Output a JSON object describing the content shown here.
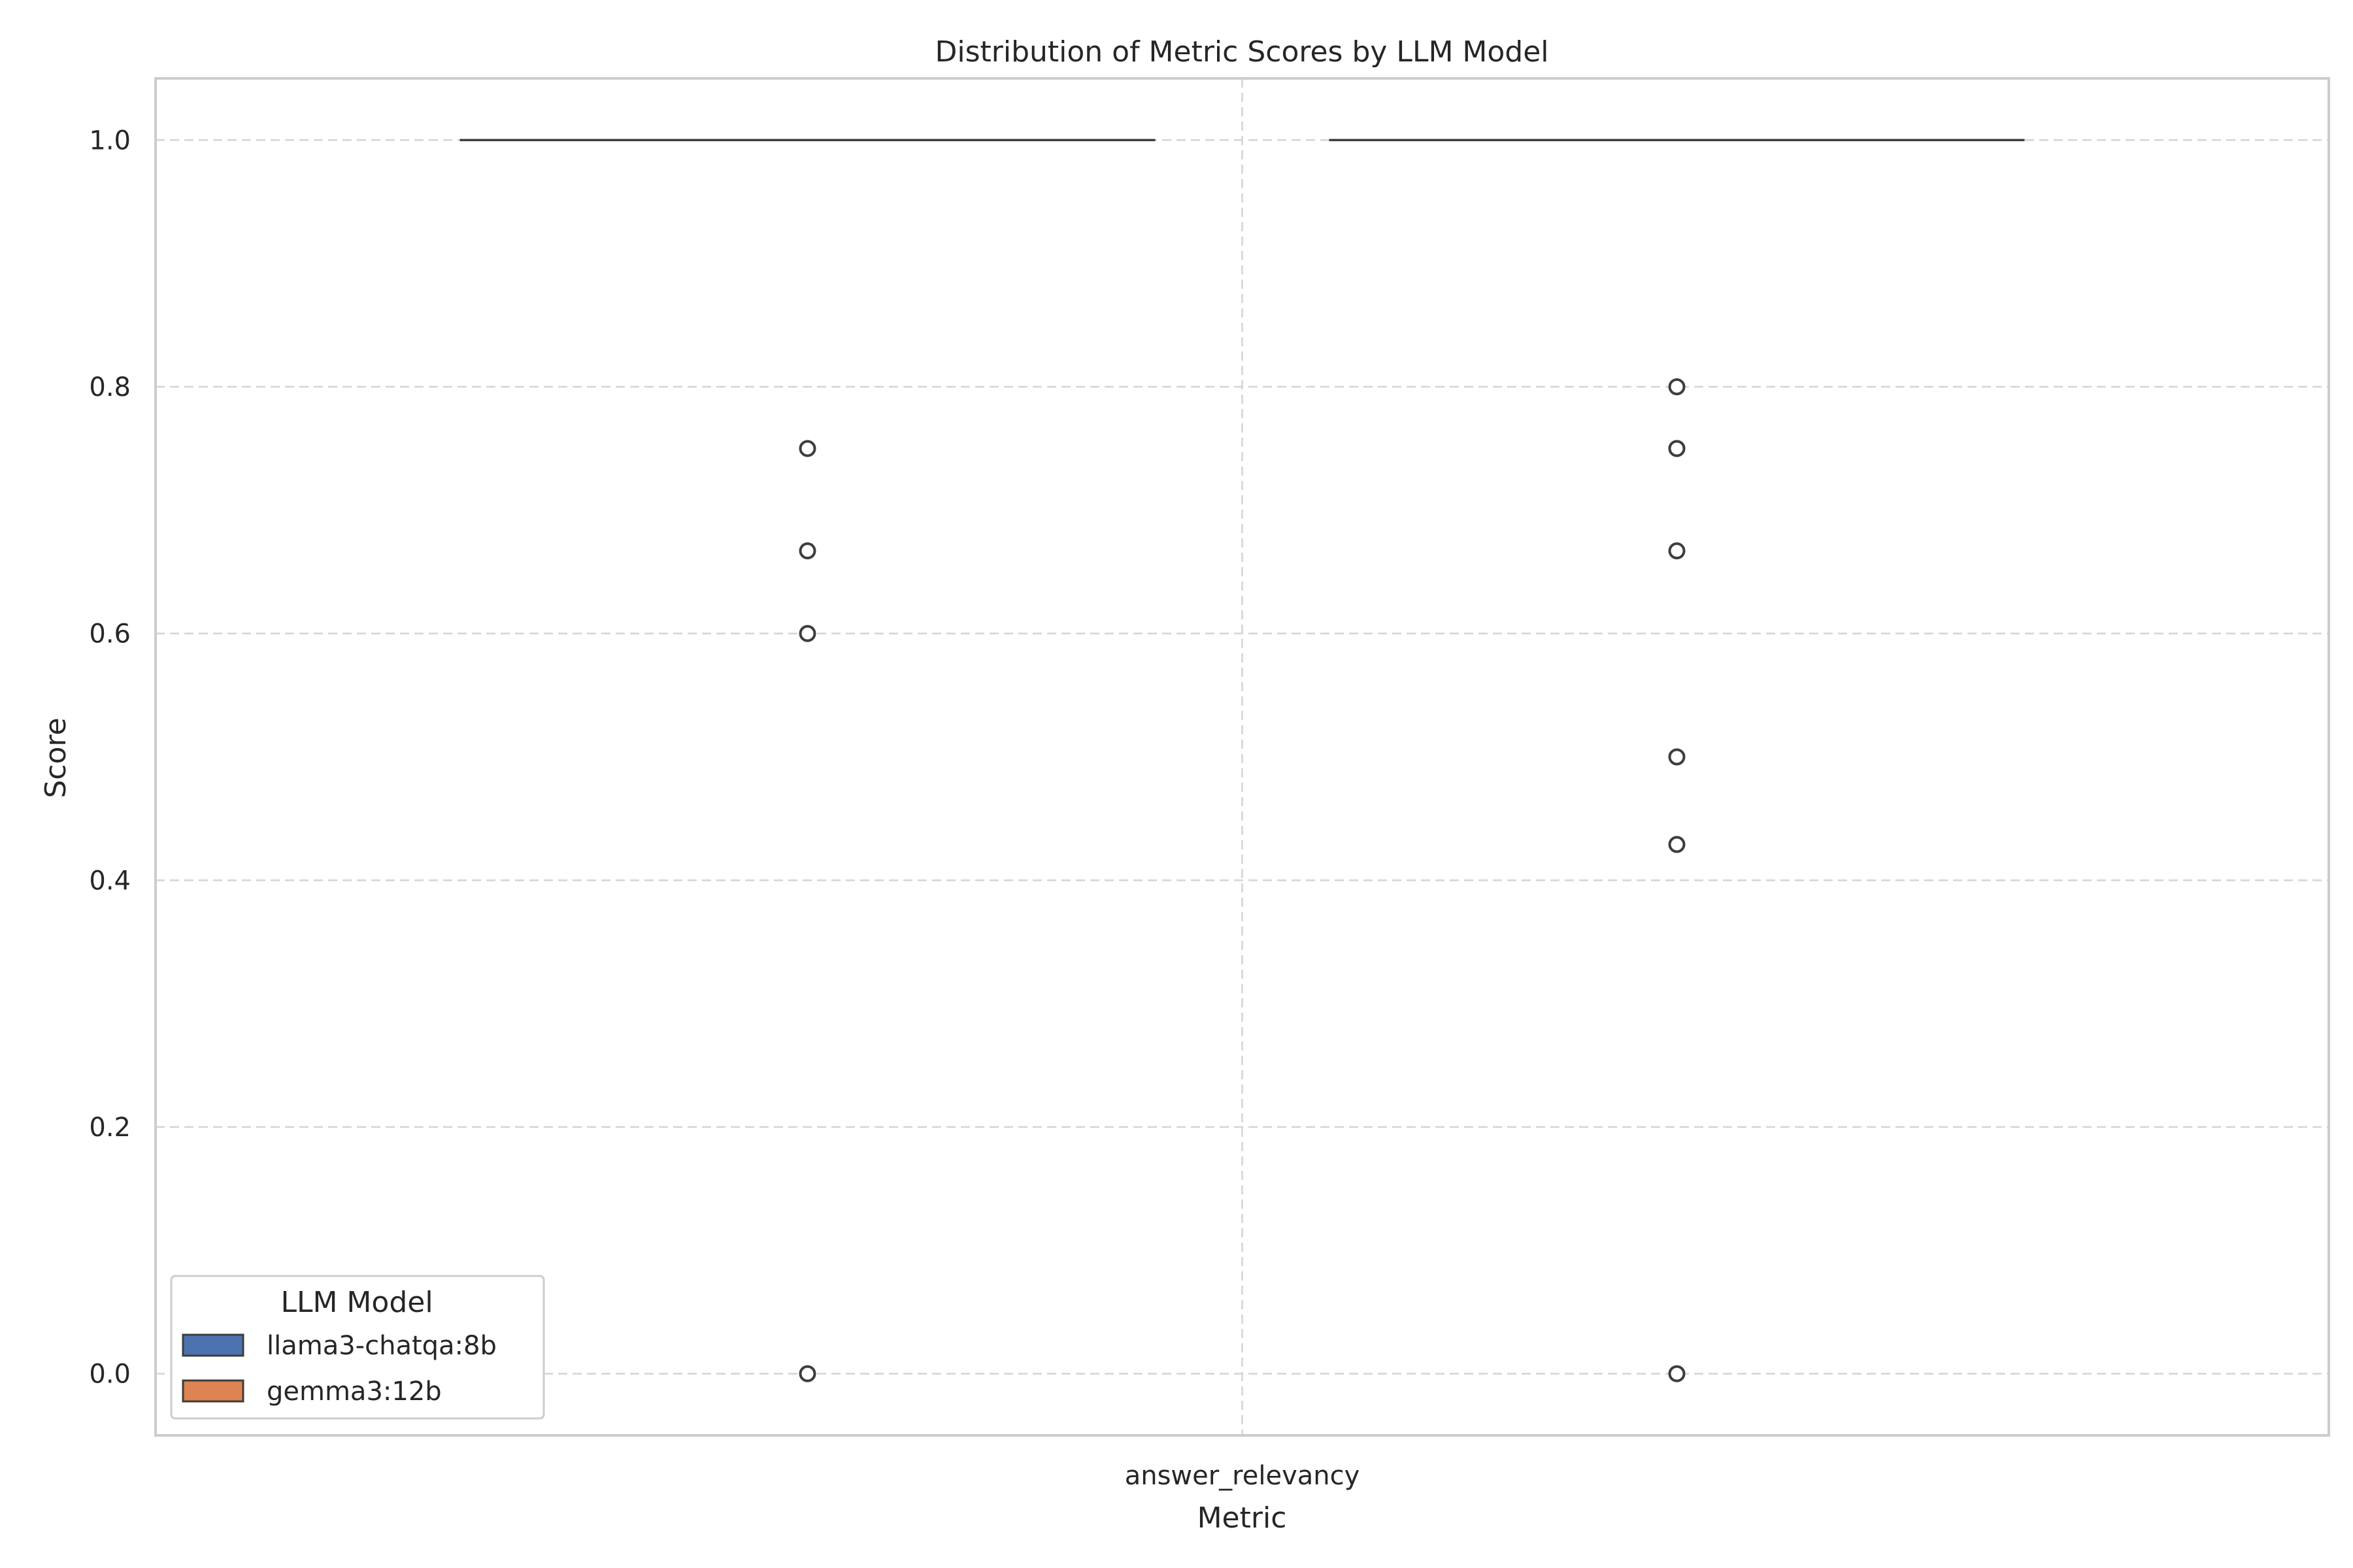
{
  "chart_data": {
    "type": "box",
    "title": "Distribution of Metric Scores by LLM Model",
    "xlabel": "Metric",
    "ylabel": "Score",
    "categories": [
      "answer_relevancy"
    ],
    "ylim": [
      -0.05,
      1.05
    ],
    "yticks": [
      0.0,
      0.2,
      0.4,
      0.6,
      0.8,
      1.0
    ],
    "ytick_labels": [
      "0.0",
      "0.2",
      "0.4",
      "0.6",
      "0.8",
      "1.0"
    ],
    "grid": true,
    "legend": {
      "title": "LLM Model",
      "placement": "lower-left",
      "entries": [
        "llama3-chatqa:8b",
        "gemma3:12b"
      ]
    },
    "series": [
      {
        "name": "llama3-chatqa:8b",
        "color": "#4c72b0",
        "median": 1.0,
        "q1": 1.0,
        "q3": 1.0,
        "whisker_low": 1.0,
        "whisker_high": 1.0,
        "outliers": [
          0.75,
          0.667,
          0.6,
          0.0
        ]
      },
      {
        "name": "gemma3:12b",
        "color": "#dd8452",
        "median": 1.0,
        "q1": 1.0,
        "q3": 1.0,
        "whisker_low": 1.0,
        "whisker_high": 1.0,
        "outliers": [
          0.8,
          0.75,
          0.75,
          0.667,
          0.5,
          0.429,
          0.0
        ]
      }
    ]
  }
}
